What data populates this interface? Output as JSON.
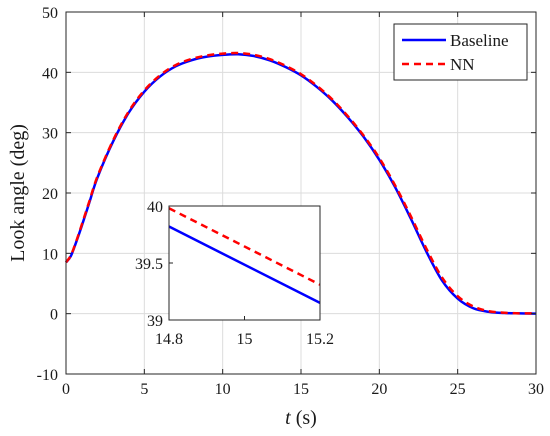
{
  "chart_data": {
    "type": "line",
    "xlabel": {
      "italic": "t",
      "rest": " (s)"
    },
    "ylabel": "Look angle (deg)",
    "xlim": [
      0,
      30
    ],
    "ylim": [
      -10,
      50
    ],
    "xticks": [
      0,
      5,
      10,
      15,
      20,
      25,
      30
    ],
    "yticks": [
      -10,
      0,
      10,
      20,
      30,
      40,
      50
    ],
    "grid": true,
    "legend_position": "top-right",
    "series": [
      {
        "name": "Baseline",
        "color": "#0000ff",
        "style": "solid",
        "x": [
          0,
          0.3,
          0.6,
          1,
          1.5,
          2,
          3,
          4,
          5,
          6,
          7,
          8,
          9,
          10,
          11,
          12,
          13,
          14,
          15,
          16,
          17,
          18,
          19,
          20,
          21,
          22,
          23,
          24,
          25,
          26,
          27,
          28,
          29,
          30
        ],
        "y": [
          8.5,
          9.5,
          11.5,
          14.5,
          18.5,
          22.5,
          28.5,
          33.3,
          36.8,
          39.3,
          41.0,
          42.0,
          42.6,
          42.9,
          43.0,
          42.7,
          42.0,
          40.9,
          39.5,
          37.6,
          35.3,
          32.5,
          29.3,
          25.5,
          21.0,
          15.8,
          10.3,
          5.5,
          2.5,
          0.9,
          0.3,
          0.1,
          0.05,
          0.0
        ]
      },
      {
        "name": "NN",
        "color": "#ff0000",
        "style": "dashed",
        "x": [
          0,
          0.3,
          0.6,
          1,
          1.5,
          2,
          3,
          4,
          5,
          6,
          7,
          8,
          9,
          10,
          11,
          12,
          13,
          14,
          15,
          16,
          17,
          18,
          19,
          20,
          21,
          22,
          23,
          24,
          25,
          26,
          27,
          28,
          29,
          30
        ],
        "y": [
          8.5,
          9.6,
          11.6,
          14.7,
          18.7,
          22.7,
          28.7,
          33.5,
          37.0,
          39.5,
          41.2,
          42.2,
          42.8,
          43.1,
          43.2,
          42.9,
          42.2,
          41.1,
          39.7,
          37.8,
          35.5,
          32.7,
          29.5,
          25.8,
          21.3,
          16.2,
          10.8,
          6.0,
          2.9,
          1.2,
          0.4,
          0.15,
          0.05,
          0.05
        ]
      }
    ],
    "inset": {
      "xlim": [
        14.8,
        15.2
      ],
      "ylim": [
        39,
        40
      ],
      "xticks": [
        14.8,
        15,
        15.2
      ],
      "yticks": [
        39,
        39.5,
        40
      ],
      "series": [
        {
          "name": "Baseline",
          "x": [
            14.8,
            15.2
          ],
          "y": [
            39.82,
            39.15
          ]
        },
        {
          "name": "NN",
          "x": [
            14.8,
            15.2
          ],
          "y": [
            39.98,
            39.31
          ]
        }
      ]
    }
  }
}
